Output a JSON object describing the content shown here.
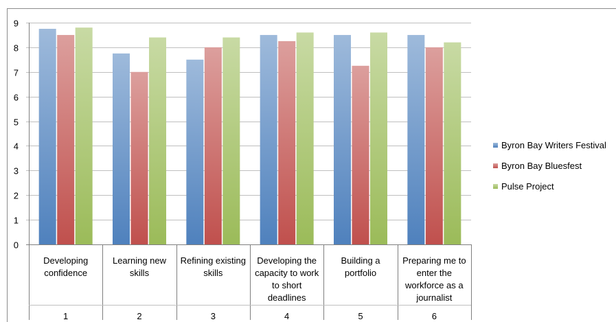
{
  "chart_data": {
    "type": "bar",
    "title": "",
    "xlabel": "",
    "ylabel": "",
    "ylim": [
      0,
      9
    ],
    "yticks": [
      0,
      1,
      2,
      3,
      4,
      5,
      6,
      7,
      8,
      9
    ],
    "grid": true,
    "legend_position": "right",
    "categories": [
      {
        "label": [
          "Developing",
          "confidence"
        ],
        "index": "1"
      },
      {
        "label": [
          "Learning new",
          "skills"
        ],
        "index": "2"
      },
      {
        "label": [
          "Refining existing",
          "skills"
        ],
        "index": "3"
      },
      {
        "label": [
          "Developing the",
          "capacity to work",
          "to short",
          "deadlines"
        ],
        "index": "4"
      },
      {
        "label": [
          "Building a",
          "portfolio"
        ],
        "index": "5"
      },
      {
        "label": [
          "Preparing me to",
          "enter the",
          "workforce as a",
          "journalist"
        ],
        "index": "6"
      }
    ],
    "series": [
      {
        "name": "Byron Bay Writers Festival",
        "color": "#4f81bd",
        "values": [
          8.75,
          7.75,
          7.5,
          8.5,
          8.5,
          8.5
        ]
      },
      {
        "name": "Byron Bay Bluesfest",
        "color": "#c0504d",
        "values": [
          8.5,
          7.0,
          8.0,
          8.25,
          7.25,
          8.0
        ]
      },
      {
        "name": "Pulse Project",
        "color": "#9bbb59",
        "values": [
          8.8,
          8.4,
          8.4,
          8.6,
          8.6,
          8.2
        ]
      }
    ]
  }
}
